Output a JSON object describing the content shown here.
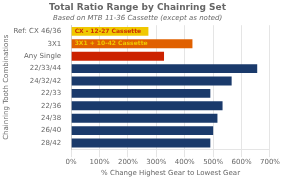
{
  "chart_data": {
    "type": "bar",
    "orientation": "horizontal",
    "title": "Total Ratio Range by Chainring Set",
    "subtitle": "Based on MTB 11-36 Cassette (except as noted)",
    "xlabel": "% Change Highest Gear to Lowest Gear",
    "ylabel": "Chainring Tooth Combinations",
    "categories": [
      "Ref: CX 46/36",
      "3X1",
      "Any Single",
      "22/33/44",
      "24/32/42",
      "22/33",
      "22/36",
      "24/38",
      "26/40",
      "28/42"
    ],
    "values": [
      272,
      427,
      327,
      655,
      565,
      490,
      533,
      515,
      500,
      490
    ],
    "colors": [
      "#f0c800",
      "#e06000",
      "#cc2200",
      "#1a3a6b",
      "#1a3a6b",
      "#1a3a6b",
      "#1a3a6b",
      "#1a3a6b",
      "#1a3a6b",
      "#1a3a6b"
    ],
    "annotations": [
      {
        "category": "Ref: CX 46/36",
        "text": "CX - 12-27 Cassette",
        "color": "#cc3300"
      },
      {
        "category": "3X1",
        "text": "3X1 + 10-42 Cassette",
        "color": "#f0c800"
      }
    ],
    "xlim": [
      0,
      700
    ],
    "xticks": [
      {
        "value": 0,
        "label": "0%"
      },
      {
        "value": 100,
        "label": "100%"
      },
      {
        "value": 200,
        "label": "200%"
      },
      {
        "value": 300,
        "label": "300%"
      },
      {
        "value": 400,
        "label": "400%"
      },
      {
        "value": 500,
        "label": "500%"
      },
      {
        "value": 600,
        "label": "600%"
      },
      {
        "value": 700,
        "label": "700%"
      }
    ],
    "grid": true
  }
}
